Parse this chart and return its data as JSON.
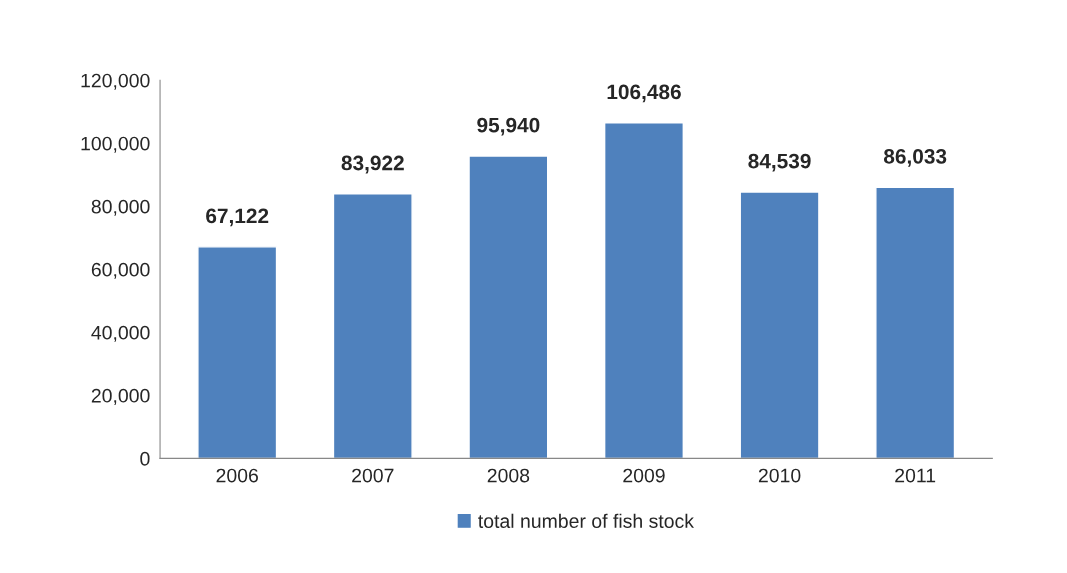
{
  "chart_data": {
    "type": "bar",
    "categories": [
      "2006",
      "2007",
      "2008",
      "2009",
      "2010",
      "2011"
    ],
    "series": [
      {
        "name": "total number of fish stock",
        "color": "#4f81bd",
        "values": [
          67122,
          83922,
          95940,
          106486,
          84539,
          86033
        ],
        "value_labels": [
          "67,122",
          "83,922",
          "95,940",
          "106,486",
          "84,539",
          "86,033"
        ]
      }
    ],
    "ylim": [
      0,
      120000
    ],
    "yticks": [
      {
        "value": 0,
        "label": "0"
      },
      {
        "value": 20000,
        "label": "20,000"
      },
      {
        "value": 40000,
        "label": "40,000"
      },
      {
        "value": 60000,
        "label": "60,000"
      },
      {
        "value": 80000,
        "label": "80,000"
      },
      {
        "value": 100000,
        "label": "100,000"
      },
      {
        "value": 120000,
        "label": "120,000"
      }
    ],
    "grid": false,
    "legend": "bottom"
  }
}
